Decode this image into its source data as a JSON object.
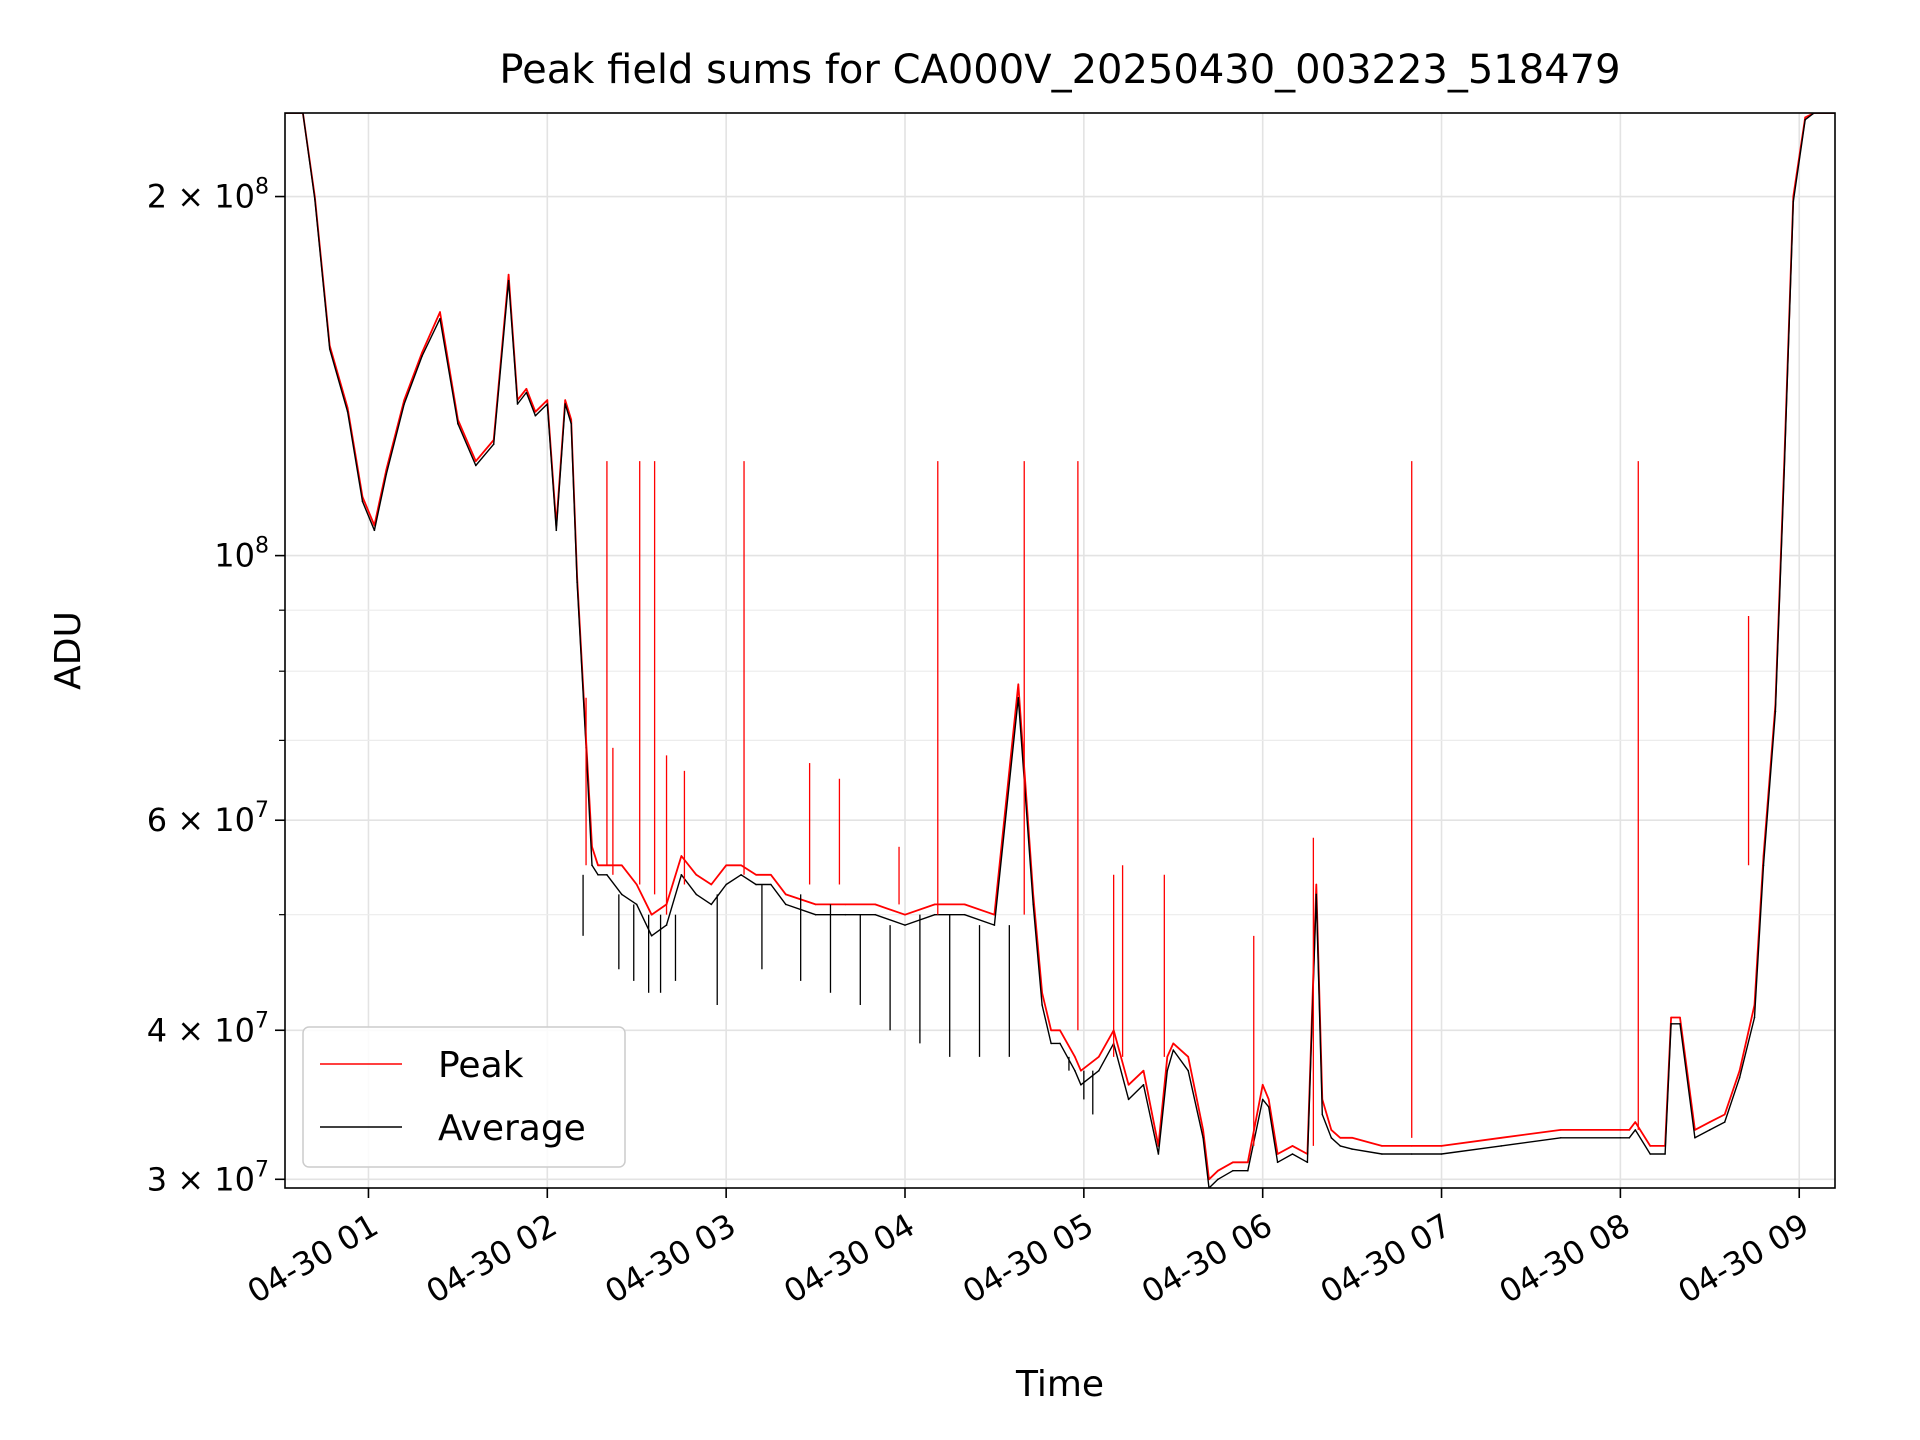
{
  "chart_data": {
    "type": "line",
    "title": "Peak field sums for CA000V_20250430_003223_518479",
    "xlabel": "Time",
    "ylabel": "ADU",
    "yscale": "log",
    "grid": true,
    "legend_position": "lower-left",
    "xlim": [
      "2025-04-30 00:32",
      "2025-04-30 09:12"
    ],
    "ylim": [
      29500000,
      235000000
    ],
    "x_ticks": [
      {
        "value": "2025-04-30 01:00",
        "label": "04-30 01"
      },
      {
        "value": "2025-04-30 02:00",
        "label": "04-30 02"
      },
      {
        "value": "2025-04-30 03:00",
        "label": "04-30 03"
      },
      {
        "value": "2025-04-30 04:00",
        "label": "04-30 04"
      },
      {
        "value": "2025-04-30 05:00",
        "label": "04-30 05"
      },
      {
        "value": "2025-04-30 06:00",
        "label": "04-30 06"
      },
      {
        "value": "2025-04-30 07:00",
        "label": "04-30 07"
      },
      {
        "value": "2025-04-30 08:00",
        "label": "04-30 08"
      },
      {
        "value": "2025-04-30 09:00",
        "label": "04-30 09"
      }
    ],
    "y_ticks": [
      {
        "value": 30000000,
        "base": "3 × 10",
        "exp": "7"
      },
      {
        "value": 40000000,
        "base": "4 × 10",
        "exp": "7"
      },
      {
        "value": 60000000,
        "base": "6 × 10",
        "exp": "7"
      },
      {
        "value": 100000000,
        "base": "10",
        "exp": "8"
      },
      {
        "value": 200000000,
        "base": "2 × 10",
        "exp": "8"
      }
    ],
    "y_minor_ticks": [
      50000000,
      70000000,
      80000000,
      90000000
    ],
    "series": [
      {
        "name": "Peak",
        "color": "#ff0000",
        "x": [
          "00:32",
          "00:38",
          "00:42",
          "00:47",
          "00:53",
          "00:58",
          "01:02",
          "01:06",
          "01:12",
          "01:18",
          "01:24",
          "01:30",
          "01:36",
          "01:42",
          "01:47",
          "01:50",
          "01:53",
          "01:56",
          "02:00",
          "02:03",
          "02:06",
          "02:08",
          "02:10",
          "02:13",
          "02:15",
          "02:17",
          "02:20",
          "02:25",
          "02:30",
          "02:35",
          "02:40",
          "02:45",
          "02:50",
          "02:55",
          "03:00",
          "03:05",
          "03:10",
          "03:15",
          "03:20",
          "03:30",
          "03:40",
          "03:50",
          "04:00",
          "04:10",
          "04:20",
          "04:30",
          "04:38",
          "04:43",
          "04:46",
          "04:49",
          "04:52",
          "04:57",
          "04:59",
          "05:05",
          "05:10",
          "05:15",
          "05:20",
          "05:25",
          "05:28",
          "05:30",
          "05:35",
          "05:40",
          "05:42",
          "05:45",
          "05:50",
          "05:55",
          "06:00",
          "06:02",
          "06:05",
          "06:10",
          "06:15",
          "06:18",
          "06:20",
          "06:23",
          "06:26",
          "06:30",
          "06:40",
          "06:50",
          "07:00",
          "07:20",
          "07:40",
          "08:00",
          "08:03",
          "08:05",
          "08:10",
          "08:15",
          "08:17",
          "08:20",
          "08:25",
          "08:30",
          "08:35",
          "08:40",
          "08:45",
          "08:48",
          "08:52",
          "08:55",
          "08:58",
          "09:02",
          "09:05",
          "09:12"
        ],
        "values": [
          235000000,
          235000000,
          200000000,
          150000000,
          133000000,
          112000000,
          106000000,
          118000000,
          135000000,
          148000000,
          160000000,
          130000000,
          120000000,
          125000000,
          172000000,
          135000000,
          138000000,
          132000000,
          135000000,
          106000000,
          135000000,
          130000000,
          96000000,
          70000000,
          57000000,
          55000000,
          55000000,
          55000000,
          53000000,
          50000000,
          51000000,
          56000000,
          54000000,
          53000000,
          55000000,
          55000000,
          54000000,
          54000000,
          52000000,
          51000000,
          51000000,
          51000000,
          50000000,
          51000000,
          51000000,
          50000000,
          78000000,
          52000000,
          43000000,
          40000000,
          40000000,
          38000000,
          37000000,
          38000000,
          40000000,
          36000000,
          37000000,
          32000000,
          38000000,
          39000000,
          38000000,
          33000000,
          30000000,
          30500000,
          31000000,
          31000000,
          36000000,
          35000000,
          31500000,
          32000000,
          31500000,
          53000000,
          35000000,
          33000000,
          32500000,
          32500000,
          32000000,
          32000000,
          32000000,
          32500000,
          33000000,
          33000000,
          33000000,
          33500000,
          32000000,
          32000000,
          41000000,
          41000000,
          33000000,
          33500000,
          34000000,
          37000000,
          42000000,
          56000000,
          75000000,
          120000000,
          200000000,
          233000000,
          235000000,
          235000000
        ]
      },
      {
        "name": "Average",
        "color": "#000000",
        "x": [
          "00:32",
          "00:38",
          "00:42",
          "00:47",
          "00:53",
          "00:58",
          "01:02",
          "01:06",
          "01:12",
          "01:18",
          "01:24",
          "01:30",
          "01:36",
          "01:42",
          "01:47",
          "01:50",
          "01:53",
          "01:56",
          "02:00",
          "02:03",
          "02:06",
          "02:08",
          "02:10",
          "02:13",
          "02:15",
          "02:17",
          "02:20",
          "02:25",
          "02:30",
          "02:35",
          "02:40",
          "02:45",
          "02:50",
          "02:55",
          "03:00",
          "03:05",
          "03:10",
          "03:15",
          "03:20",
          "03:30",
          "03:40",
          "03:50",
          "04:00",
          "04:10",
          "04:20",
          "04:30",
          "04:38",
          "04:43",
          "04:46",
          "04:49",
          "04:52",
          "04:57",
          "04:59",
          "05:05",
          "05:10",
          "05:15",
          "05:20",
          "05:25",
          "05:28",
          "05:30",
          "05:35",
          "05:40",
          "05:42",
          "05:45",
          "05:50",
          "05:55",
          "06:00",
          "06:02",
          "06:05",
          "06:10",
          "06:15",
          "06:18",
          "06:20",
          "06:23",
          "06:26",
          "06:30",
          "06:40",
          "06:50",
          "07:00",
          "07:20",
          "07:40",
          "08:00",
          "08:03",
          "08:05",
          "08:10",
          "08:15",
          "08:17",
          "08:20",
          "08:25",
          "08:30",
          "08:35",
          "08:40",
          "08:45",
          "08:48",
          "08:52",
          "08:55",
          "08:58",
          "09:02",
          "09:05",
          "09:12"
        ],
        "values": [
          235000000,
          235000000,
          199000000,
          149000000,
          132000000,
          111000000,
          105000000,
          117000000,
          134000000,
          147000000,
          158000000,
          129000000,
          119000000,
          124000000,
          170000000,
          134000000,
          137000000,
          131000000,
          134000000,
          105000000,
          134000000,
          129000000,
          95000000,
          69000000,
          55000000,
          54000000,
          54000000,
          52000000,
          51000000,
          48000000,
          49000000,
          54000000,
          52000000,
          51000000,
          53000000,
          54000000,
          53000000,
          53000000,
          51000000,
          50000000,
          50000000,
          50000000,
          49000000,
          50000000,
          50000000,
          49000000,
          76000000,
          51000000,
          42000000,
          39000000,
          39000000,
          37000000,
          36000000,
          37000000,
          39000000,
          35000000,
          36000000,
          31500000,
          37000000,
          38500000,
          37000000,
          32500000,
          29500000,
          30000000,
          30500000,
          30500000,
          35000000,
          34500000,
          31000000,
          31500000,
          31000000,
          52000000,
          34000000,
          32500000,
          32000000,
          31800000,
          31500000,
          31500000,
          31500000,
          32000000,
          32500000,
          32500000,
          32500000,
          33000000,
          31500000,
          31500000,
          40500000,
          40500000,
          32500000,
          33000000,
          33500000,
          36500000,
          41000000,
          55000000,
          74000000,
          118000000,
          198000000,
          232000000,
          235000000,
          235000000
        ]
      }
    ],
    "spikes": [
      {
        "series": "Peak",
        "x": "02:20",
        "base": 55000000,
        "value": 120000000
      },
      {
        "series": "Peak",
        "x": "02:31",
        "base": 53000000,
        "value": 120000000
      },
      {
        "series": "Peak",
        "x": "02:36",
        "base": 52000000,
        "value": 120000000
      },
      {
        "series": "Peak",
        "x": "03:06",
        "base": 54000000,
        "value": 120000000
      },
      {
        "series": "Peak",
        "x": "04:11",
        "base": 50000000,
        "value": 120000000
      },
      {
        "series": "Peak",
        "x": "04:40",
        "base": 50000000,
        "value": 120000000
      },
      {
        "series": "Peak",
        "x": "04:58",
        "base": 40000000,
        "value": 120000000
      },
      {
        "series": "Peak",
        "x": "06:50",
        "base": 32500000,
        "value": 120000000
      },
      {
        "series": "Peak",
        "x": "08:06",
        "base": 33000000,
        "value": 120000000
      },
      {
        "series": "Peak",
        "x": "08:43",
        "base": 55000000,
        "value": 89000000
      },
      {
        "series": "Peak",
        "x": "02:13",
        "base": 55000000,
        "value": 76000000
      },
      {
        "series": "Peak",
        "x": "02:22",
        "base": 54000000,
        "value": 69000000
      },
      {
        "series": "Peak",
        "x": "02:40",
        "base": 50000000,
        "value": 68000000
      },
      {
        "series": "Peak",
        "x": "02:46",
        "base": 53000000,
        "value": 66000000
      },
      {
        "series": "Peak",
        "x": "03:28",
        "base": 53000000,
        "value": 67000000
      },
      {
        "series": "Peak",
        "x": "03:38",
        "base": 53000000,
        "value": 65000000
      },
      {
        "series": "Peak",
        "x": "03:58",
        "base": 51000000,
        "value": 57000000
      },
      {
        "series": "Peak",
        "x": "05:10",
        "base": 38000000,
        "value": 54000000
      },
      {
        "series": "Peak",
        "x": "05:13",
        "base": 38000000,
        "value": 55000000
      },
      {
        "series": "Peak",
        "x": "05:27",
        "base": 38000000,
        "value": 54000000
      },
      {
        "series": "Peak",
        "x": "05:57",
        "base": 32000000,
        "value": 48000000
      },
      {
        "series": "Peak",
        "x": "06:17",
        "base": 32000000,
        "value": 58000000
      }
    ],
    "dips": [
      {
        "series": "Average",
        "x": "02:12",
        "base": 54000000,
        "value": 48000000
      },
      {
        "series": "Average",
        "x": "02:24",
        "base": 52000000,
        "value": 45000000
      },
      {
        "series": "Average",
        "x": "02:29",
        "base": 51000000,
        "value": 44000000
      },
      {
        "series": "Average",
        "x": "02:34",
        "base": 50000000,
        "value": 43000000
      },
      {
        "series": "Average",
        "x": "02:38",
        "base": 50000000,
        "value": 43000000
      },
      {
        "series": "Average",
        "x": "02:43",
        "base": 50000000,
        "value": 44000000
      },
      {
        "series": "Average",
        "x": "02:57",
        "base": 52000000,
        "value": 42000000
      },
      {
        "series": "Average",
        "x": "03:12",
        "base": 53000000,
        "value": 45000000
      },
      {
        "series": "Average",
        "x": "03:25",
        "base": 52000000,
        "value": 44000000
      },
      {
        "series": "Average",
        "x": "03:35",
        "base": 51000000,
        "value": 43000000
      },
      {
        "series": "Average",
        "x": "03:45",
        "base": 50000000,
        "value": 42000000
      },
      {
        "series": "Average",
        "x": "03:55",
        "base": 49000000,
        "value": 40000000
      },
      {
        "series": "Average",
        "x": "04:05",
        "base": 50000000,
        "value": 39000000
      },
      {
        "series": "Average",
        "x": "04:15",
        "base": 50000000,
        "value": 38000000
      },
      {
        "series": "Average",
        "x": "04:25",
        "base": 49000000,
        "value": 38000000
      },
      {
        "series": "Average",
        "x": "04:35",
        "base": 49000000,
        "value": 38000000
      },
      {
        "series": "Average",
        "x": "04:55",
        "base": 38000000,
        "value": 37000000
      },
      {
        "series": "Average",
        "x": "05:00",
        "base": 37000000,
        "value": 35000000
      },
      {
        "series": "Average",
        "x": "05:03",
        "base": 37000000,
        "value": 34000000
      }
    ]
  }
}
